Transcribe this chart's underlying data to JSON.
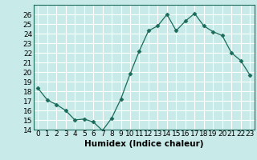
{
  "x": [
    0,
    1,
    2,
    3,
    4,
    5,
    6,
    7,
    8,
    9,
    10,
    11,
    12,
    13,
    14,
    15,
    16,
    17,
    18,
    19,
    20,
    21,
    22,
    23
  ],
  "y": [
    18.3,
    17.1,
    16.6,
    16.0,
    15.0,
    15.1,
    14.8,
    13.9,
    15.2,
    17.2,
    19.8,
    22.2,
    24.3,
    24.8,
    26.0,
    24.3,
    25.3,
    26.1,
    24.8,
    24.2,
    23.8,
    22.0,
    21.2,
    19.7
  ],
  "line_color": "#1a6b5a",
  "marker": "D",
  "marker_size": 2.5,
  "bg_color": "#c8eae8",
  "grid_color": "#ffffff",
  "xlabel": "Humidex (Indice chaleur)",
  "xlim": [
    -0.5,
    23.5
  ],
  "ylim": [
    14,
    27
  ],
  "xticks": [
    0,
    1,
    2,
    3,
    4,
    5,
    6,
    7,
    8,
    9,
    10,
    11,
    12,
    13,
    14,
    15,
    16,
    17,
    18,
    19,
    20,
    21,
    22,
    23
  ],
  "yticks": [
    14,
    15,
    16,
    17,
    18,
    19,
    20,
    21,
    22,
    23,
    24,
    25,
    26
  ],
  "tick_fontsize": 6.5,
  "label_fontsize": 7.5
}
